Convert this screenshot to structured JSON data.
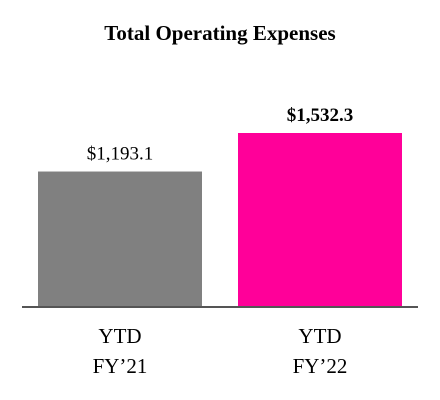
{
  "chart_data": {
    "type": "bar",
    "title": "Total Operating Expenses",
    "xlabel": "",
    "ylabel": "",
    "categories": [
      [
        "YTD",
        "FY’21"
      ],
      [
        "YTD",
        "FY’22"
      ]
    ],
    "values": [
      1193.1,
      1532.3
    ],
    "value_labels": [
      "$1,193.1",
      "$1,532.3"
    ],
    "value_label_bold": [
      false,
      true
    ],
    "bar_colors": [
      "#808080",
      "#ff0099"
    ],
    "axis_color": "#555555",
    "ylim": [
      0,
      1532.3
    ],
    "grid": false,
    "legend": "none"
  }
}
